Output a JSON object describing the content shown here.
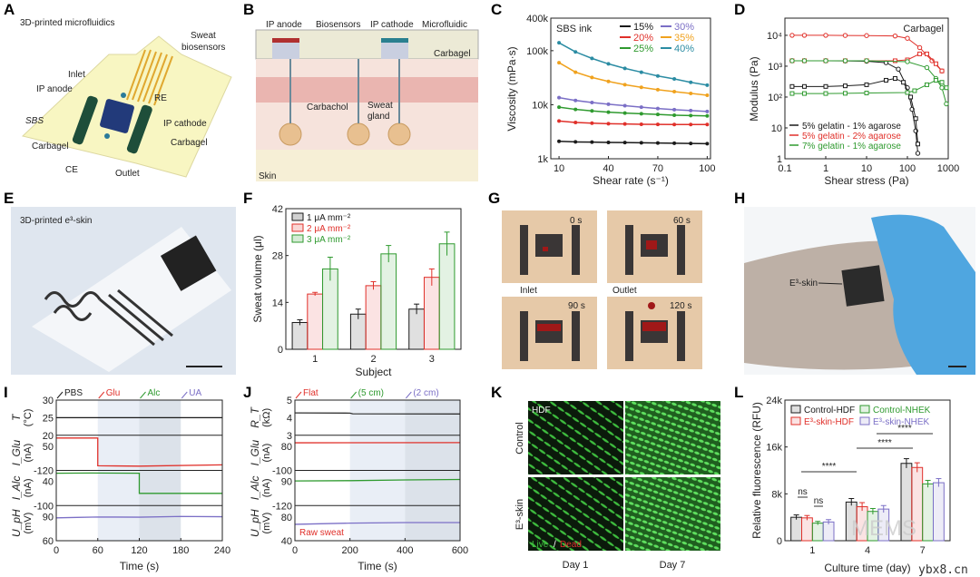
{
  "panel_labels": [
    "A",
    "B",
    "C",
    "D",
    "E",
    "F",
    "G",
    "H",
    "I",
    "J",
    "K",
    "L"
  ],
  "panelA": {
    "title": "3D-printed microfluidics",
    "labels": {
      "sweat": "Sweat",
      "biosensors": "biosensors",
      "inlet": "Inlet",
      "ip_anode": "IP anode",
      "re": "RE",
      "sbs": "SBS",
      "ip_cathode": "IP cathode",
      "carbagel_left": "Carbagel",
      "carbagel_right": "Carbagel",
      "ce": "CE",
      "outlet": "Outlet"
    }
  },
  "panelB": {
    "labels": {
      "ip_anode": "IP anode",
      "biosensors": "Biosensors",
      "ip_cathode": "IP cathode",
      "microfluidic": "Microfluidic",
      "carbagel": "Carbagel",
      "carbachol": "Carbachol",
      "sweat": "Sweat",
      "gland": "gland",
      "skin": "Skin"
    }
  },
  "panelE": {
    "title": "3D-printed e³-skin"
  },
  "panelG": {
    "times": [
      "0 s",
      "60 s",
      "90 s",
      "120 s"
    ],
    "inlet": "Inlet",
    "outlet": "Outlet"
  },
  "panelH": {
    "label": "E³-skin"
  },
  "panelK": {
    "hdf": "HDF",
    "rows": [
      "Control",
      "E³-skin"
    ],
    "cols": [
      "Day 1",
      "Day 7"
    ],
    "live": "Live",
    "slash": "/",
    "dead": "Dead"
  },
  "watermark": {
    "site": "ybx8.cn",
    "brand": "MEMS"
  },
  "colors": {
    "black": "#1a1a1a",
    "red": "#e0302a",
    "green": "#2f9a2f",
    "purple": "#7b6fc6",
    "orange": "#f0a21e",
    "teal": "#2b8ca3"
  },
  "chart_data": [
    {
      "id": "C",
      "type": "line",
      "title": "SBS ink",
      "xlabel": "Shear rate (s⁻¹)",
      "ylabel": "Viscosity (mPa·s)",
      "xlim": [
        5,
        102
      ],
      "ylim": [
        1000,
        400000
      ],
      "yscale": "log",
      "xticks": [
        10,
        40,
        70,
        100
      ],
      "xtick_labels": [
        "10",
        "40",
        "70",
        "100"
      ],
      "yticks": [
        1000,
        10000,
        100000,
        400000
      ],
      "ytick_labels": [
        "1k",
        "10k",
        "100k",
        "400k"
      ],
      "x": [
        10,
        20,
        30,
        40,
        50,
        60,
        70,
        80,
        90,
        100
      ],
      "series": [
        {
          "name": "15%",
          "color": "#1a1a1a",
          "values": [
            2100,
            2050,
            2030,
            2010,
            2000,
            1980,
            1960,
            1940,
            1920,
            1900
          ]
        },
        {
          "name": "20%",
          "color": "#e0302a",
          "values": [
            5000,
            4700,
            4550,
            4450,
            4400,
            4350,
            4330,
            4310,
            4300,
            4300
          ]
        },
        {
          "name": "25%",
          "color": "#2f9a2f",
          "values": [
            9000,
            8200,
            7700,
            7300,
            7000,
            6800,
            6600,
            6400,
            6300,
            6200
          ]
        },
        {
          "name": "30%",
          "color": "#7b6fc6",
          "values": [
            13500,
            12000,
            11000,
            10200,
            9600,
            9000,
            8500,
            8100,
            7800,
            7500
          ]
        },
        {
          "name": "35%",
          "color": "#f0a21e",
          "values": [
            60000,
            40000,
            32000,
            27000,
            23500,
            21000,
            19000,
            17500,
            16200,
            15000
          ]
        },
        {
          "name": "40%",
          "color": "#2b8ca3",
          "values": [
            140000,
            95000,
            72000,
            57000,
            47000,
            40000,
            34000,
            30000,
            26000,
            23000
          ]
        }
      ],
      "legend": "top-right"
    },
    {
      "id": "D",
      "type": "scatter",
      "title": "Carbagel",
      "xlabel": "Shear stress (Pa)",
      "ylabel": "Modulus (Pa)",
      "xlim": [
        0.1,
        1000
      ],
      "ylim": [
        1,
        36000
      ],
      "xscale": "log",
      "yscale": "log",
      "xticks": [
        0.1,
        1,
        10,
        100,
        1000
      ],
      "xtick_labels": [
        "0.1",
        "1",
        "10",
        "100",
        "1000"
      ],
      "yticks": [
        1,
        10,
        100,
        1000,
        10000
      ],
      "ytick_labels": [
        "1",
        "10",
        "10²",
        "10³",
        "10⁴"
      ],
      "series": [
        {
          "name": "5% gelatin - 1% agarose",
          "color": "#1a1a1a",
          "a": [
            [
              0.15,
              1500
            ],
            [
              0.3,
              1500
            ],
            [
              1,
              1500
            ],
            [
              3,
              1480
            ],
            [
              10,
              1450
            ],
            [
              30,
              1300
            ],
            [
              60,
              800
            ],
            [
              100,
              200
            ],
            [
              130,
              40
            ],
            [
              160,
              8
            ],
            [
              180,
              1.5
            ]
          ],
          "b": [
            [
              0.15,
              220
            ],
            [
              0.3,
              220
            ],
            [
              1,
              220
            ],
            [
              3,
              230
            ],
            [
              10,
              250
            ],
            [
              30,
              350
            ],
            [
              50,
              400
            ],
            [
              80,
              300
            ],
            [
              120,
              100
            ],
            [
              160,
              20
            ],
            [
              180,
              3
            ]
          ]
        },
        {
          "name": "5% gelatin - 2% agarose",
          "color": "#e0302a",
          "a": [
            [
              0.15,
              10000
            ],
            [
              0.3,
              10000
            ],
            [
              1,
              10000
            ],
            [
              3,
              9900
            ],
            [
              10,
              9800
            ],
            [
              50,
              9500
            ],
            [
              100,
              8000
            ],
            [
              200,
              4000
            ],
            [
              400,
              1500
            ],
            [
              700,
              700
            ]
          ],
          "b": [
            [
              0.15,
              1500
            ],
            [
              0.3,
              1500
            ],
            [
              1,
              1500
            ],
            [
              3,
              1500
            ],
            [
              10,
              1500
            ],
            [
              50,
              1500
            ],
            [
              100,
              1600
            ],
            [
              200,
              2500
            ],
            [
              300,
              2500
            ],
            [
              500,
              1200
            ],
            [
              700,
              700
            ]
          ]
        },
        {
          "name": "7% gelatin - 1% agarose",
          "color": "#2f9a2f",
          "a": [
            [
              0.15,
              1500
            ],
            [
              0.3,
              1500
            ],
            [
              1,
              1500
            ],
            [
              3,
              1500
            ],
            [
              10,
              1500
            ],
            [
              100,
              1400
            ],
            [
              300,
              900
            ],
            [
              500,
              400
            ],
            [
              700,
              200
            ],
            [
              900,
              60
            ]
          ],
          "b": [
            [
              0.15,
              130
            ],
            [
              0.3,
              130
            ],
            [
              1,
              130
            ],
            [
              3,
              132
            ],
            [
              10,
              135
            ],
            [
              100,
              140
            ],
            [
              150,
              160
            ],
            [
              300,
              250
            ],
            [
              500,
              350
            ],
            [
              700,
              300
            ],
            [
              900,
              200
            ]
          ]
        }
      ],
      "legend": "bottom-left"
    },
    {
      "id": "F",
      "type": "bar",
      "xlabel": "Subject",
      "ylabel": "Sweat volume (μl)",
      "ylim": [
        0,
        42
      ],
      "yticks": [
        0,
        14,
        28,
        42
      ],
      "ytick_labels": [
        "0",
        "14",
        "28",
        "42"
      ],
      "categories": [
        "1",
        "2",
        "3"
      ],
      "series": [
        {
          "name": "1 μA mm⁻²",
          "color": "#1a1a1a",
          "values": [
            8,
            10.5,
            12
          ],
          "errors": [
            0.8,
            1.5,
            1.5
          ]
        },
        {
          "name": "2 μA mm⁻²",
          "color": "#e0302a",
          "values": [
            16.5,
            19,
            21.5
          ],
          "errors": [
            0.5,
            1.2,
            2.5
          ]
        },
        {
          "name": "3 μA mm⁻²",
          "color": "#2f9a2f",
          "values": [
            24,
            28.5,
            31.5
          ],
          "errors": [
            3.5,
            2.5,
            3.5
          ]
        }
      ],
      "legend": "top-left"
    },
    {
      "id": "I",
      "type": "line",
      "xlabel": "Time (s)",
      "xlim": [
        0,
        240
      ],
      "xticks": [
        0,
        60,
        120,
        180,
        240
      ],
      "xtick_labels": [
        "0",
        "60",
        "120",
        "180",
        "240"
      ],
      "events": [
        {
          "t": 0,
          "label": "PBS",
          "color": "#1a1a1a"
        },
        {
          "t": 60,
          "label": "Glu",
          "color": "#e0302a"
        },
        {
          "t": 120,
          "label": "Alc",
          "color": "#2f9a2f"
        },
        {
          "t": 180,
          "label": "UA",
          "color": "#7b6fc6"
        }
      ],
      "shaded": [
        [
          60,
          120,
          "#e9eef6"
        ],
        [
          120,
          180,
          "#dce2ea"
        ]
      ],
      "subplots": [
        {
          "ylabel": "T",
          "unit": "(°C)",
          "ylim": [
            20,
            30
          ],
          "tick_top": "30",
          "tick_mid": "25",
          "tick_bottom": "20",
          "color": "#1a1a1a",
          "points": [
            [
              0,
              25
            ],
            [
              240,
              25
            ]
          ]
        },
        {
          "ylabel": "I_Glu",
          "unit": "(nA)",
          "ylim": [
            -120,
            70
          ],
          "tick_top": "50",
          "tick_bottom": "-120",
          "color": "#e0302a",
          "points": [
            [
              0,
              55
            ],
            [
              60,
              55
            ],
            [
              60,
              -95
            ],
            [
              120,
              -97
            ],
            [
              240,
              -90
            ]
          ]
        },
        {
          "ylabel": "I_Alc",
          "unit": "(nA)",
          "ylim": [
            -100,
            50
          ],
          "tick_top": "40",
          "tick_bottom": "-100",
          "color": "#2f9a2f",
          "points": [
            [
              0,
              38
            ],
            [
              50,
              39
            ],
            [
              120,
              38
            ],
            [
              120,
              -48
            ],
            [
              240,
              -48
            ]
          ]
        },
        {
          "ylabel": "U_pH",
          "unit": "(mV)",
          "ylim": [
            60,
            100
          ],
          "tick_top": "90",
          "tick_bottom": "60",
          "color": "#7b6fc6",
          "points": [
            [
              0,
              86
            ],
            [
              30,
              86.5
            ],
            [
              60,
              87
            ],
            [
              120,
              86.8
            ],
            [
              180,
              87.6
            ],
            [
              240,
              87.3
            ]
          ]
        }
      ]
    },
    {
      "id": "J",
      "type": "line",
      "xlabel": "Time (s)",
      "xlim": [
        0,
        600
      ],
      "xticks": [
        0,
        200,
        400,
        600
      ],
      "xtick_labels": [
        "0",
        "200",
        "400",
        "600"
      ],
      "events": [
        {
          "t": 0,
          "label": "Flat",
          "color": "#e0302a"
        },
        {
          "t": 200,
          "label": "(5 cm)",
          "color": "#2f9a2f"
        },
        {
          "t": 400,
          "label": "(2 cm)",
          "color": "#7b6fc6"
        }
      ],
      "shaded": [
        [
          200,
          400,
          "#e9eef6"
        ],
        [
          400,
          600,
          "#dce2ea"
        ]
      ],
      "note": "Raw sweat",
      "subplots": [
        {
          "ylabel": "R_T",
          "unit": "(kΩ)",
          "ylim": [
            3,
            5
          ],
          "tick_top": "5",
          "tick_mid": "4",
          "tick_bottom": "3",
          "color": "#333",
          "points": [
            [
              0,
              4.27
            ],
            [
              200,
              4.26
            ],
            [
              210,
              4.22
            ],
            [
              600,
              4.21
            ]
          ]
        },
        {
          "ylabel": "I_Glu",
          "unit": "(nA)",
          "ylim": [
            -100,
            100
          ],
          "tick_top": "80",
          "tick_bottom": "-100",
          "color": "#e0302a",
          "points": [
            [
              0,
              57
            ],
            [
              600,
              58
            ]
          ]
        },
        {
          "ylabel": "I_Alc",
          "unit": "(nA)",
          "ylim": [
            -120,
            120
          ],
          "tick_top": "90",
          "tick_bottom": "-120",
          "color": "#2f9a2f",
          "points": [
            [
              0,
              48
            ],
            [
              200,
              50
            ],
            [
              400,
              55
            ],
            [
              600,
              58
            ]
          ]
        },
        {
          "ylabel": "U_pH",
          "unit": "(mV)",
          "ylim": [
            40,
            100
          ],
          "tick_top": "80",
          "tick_bottom": "40",
          "color": "#7b6fc6",
          "points": [
            [
              0,
              68
            ],
            [
              200,
              70
            ],
            [
              400,
              71
            ],
            [
              600,
              71
            ]
          ]
        }
      ]
    },
    {
      "id": "L",
      "type": "bar",
      "xlabel": "Culture time (day)",
      "ylabel": "Relative fluorescence (RFU)",
      "ylim": [
        0,
        24000
      ],
      "yticks": [
        0,
        8000,
        16000,
        24000
      ],
      "ytick_labels": [
        "0",
        "8k",
        "16k",
        "24k"
      ],
      "categories": [
        "1",
        "4",
        "7"
      ],
      "series": [
        {
          "name": "Control-HDF",
          "color": "#1a1a1a",
          "values": [
            4000,
            6600,
            13200
          ],
          "errors": [
            400,
            600,
            800
          ]
        },
        {
          "name": "E³-skin-HDF",
          "color": "#e0302a",
          "values": [
            3900,
            5800,
            12500
          ],
          "errors": [
            400,
            700,
            800
          ]
        },
        {
          "name": "Control-NHEK",
          "color": "#2f9a2f",
          "values": [
            3000,
            5000,
            9700
          ],
          "errors": [
            300,
            500,
            600
          ]
        },
        {
          "name": "E³-skin-NHEK",
          "color": "#7b6fc6",
          "values": [
            3200,
            5400,
            9900
          ],
          "errors": [
            400,
            600,
            700
          ]
        }
      ],
      "annotations": [
        "ns",
        "ns",
        "****",
        "****",
        "****"
      ],
      "legend": "top"
    }
  ]
}
